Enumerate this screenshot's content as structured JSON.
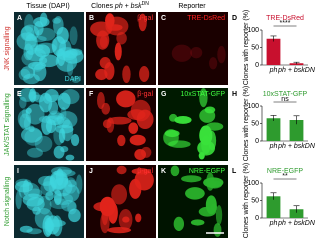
{
  "header": {
    "tissue": "Tissue (DAPI)",
    "clones": "Clones",
    "genotype": "ph + bsk",
    "superscript": "DN",
    "reporter": "Reporter"
  },
  "rows": [
    {
      "label": "JNK signalling",
      "panels": [
        "A",
        "B",
        "C"
      ],
      "texts": [
        "DAPI",
        "β-gal",
        "TRE-DsRed"
      ]
    },
    {
      "label": "JAK/STAT signalling",
      "panels": [
        "E",
        "F",
        "G"
      ],
      "texts": [
        "",
        "β-gal",
        "10xSTAT-GFP"
      ]
    },
    {
      "label": "Notch signalling",
      "panels": [
        "I",
        "J",
        "K"
      ],
      "texts": [
        "",
        "β-gal",
        "NRE-EGFP"
      ]
    }
  ],
  "chart_data": [
    {
      "type": "bar",
      "panel": "D",
      "title": "TRE-DsRed",
      "ylabel": "Clones with reporter (%)",
      "categories": [
        "ph",
        "ph + bskDN"
      ],
      "values": [
        75,
        5
      ],
      "errors": [
        8,
        3
      ],
      "color": "#c8102e",
      "ylim": [
        0,
        100
      ],
      "yticks": [
        0,
        50,
        100
      ],
      "significance": "****"
    },
    {
      "type": "bar",
      "panel": "H",
      "title": "10xSTAT-GFP",
      "ylabel": "Clones with reporter (%)",
      "categories": [
        "ph",
        "ph + bskDN"
      ],
      "values": [
        65,
        60
      ],
      "errors": [
        8,
        12
      ],
      "color": "#2e9b2e",
      "ylim": [
        0,
        100
      ],
      "yticks": [
        0,
        50,
        100
      ],
      "significance": "ns"
    },
    {
      "type": "bar",
      "panel": "L",
      "title": "NRE-EGFP",
      "ylabel": "Clones with reporter (%)",
      "categories": [
        "ph",
        "ph + bskDN"
      ],
      "values": [
        62,
        25
      ],
      "errors": [
        10,
        10
      ],
      "color": "#2e9b2e",
      "ylim": [
        0,
        100
      ],
      "yticks": [
        0,
        50,
        100
      ],
      "significance": "**"
    }
  ]
}
